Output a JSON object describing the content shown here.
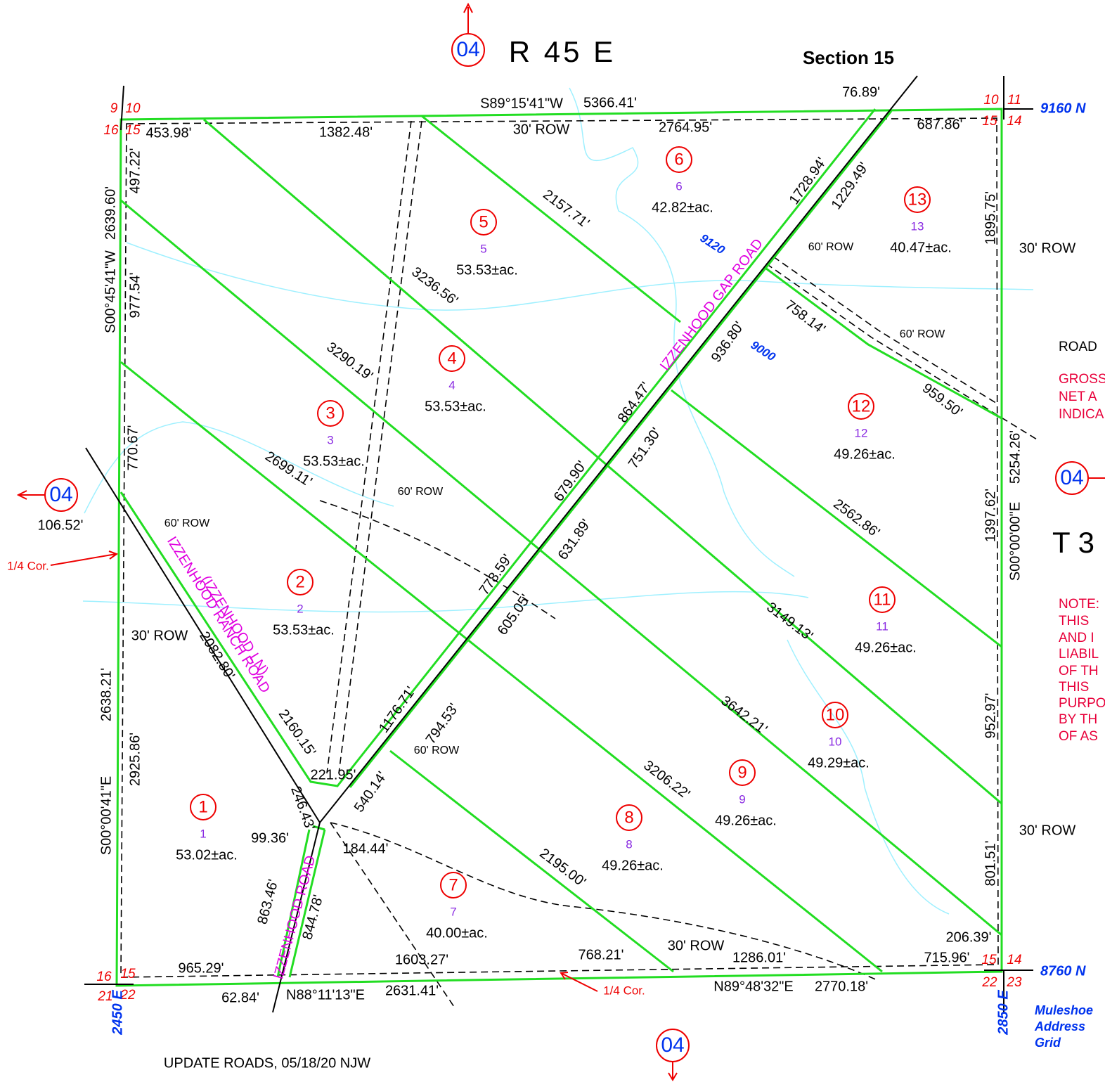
{
  "header": {
    "range": "R 45 E",
    "section": "Section 15",
    "township": "T 3"
  },
  "sheet_refs": [
    "04",
    "04",
    "04",
    "04"
  ],
  "section_corners": [
    "9",
    "10",
    "16",
    "15",
    "10",
    "11",
    "15",
    "14",
    "16",
    "15",
    "21",
    "22",
    "15",
    "14",
    "22",
    "23"
  ],
  "grid": [
    "9160 N",
    "8760 N",
    "2450 E",
    "2850 E",
    "9120",
    "9000"
  ],
  "grid_legend": [
    "Muleshoe",
    "Address",
    "Grid"
  ],
  "corner_notes": [
    "1/4 Cor.",
    "1/4 Cor."
  ],
  "roads": [
    "IZZENHOOD GAP ROAD",
    "(IZZENHOOD LN)",
    "IZZENHOOD RANCH ROAD",
    "IZZENHOOD ROAD"
  ],
  "dimensions": [
    "S89°15'41\"W",
    "5366.41'",
    "453.98'",
    "1382.48'",
    "30' ROW",
    "2764.95'",
    "76.89'",
    "687.86'",
    "497.22'",
    "2639.60'",
    "S00°45'41\"W",
    "977.54'",
    "770.67'",
    "106.52'",
    "2157.71'",
    "3236.56'",
    "3290.19'",
    "2699.11'",
    "60' ROW",
    "60' ROW",
    "1728.94'",
    "1229.49'",
    "60' ROW",
    "758.14'",
    "60' ROW",
    "936.80'",
    "864.47'",
    "959.50'",
    "751.30'",
    "679.90'",
    "631.89'",
    "2562.86'",
    "778.59'",
    "605.05'",
    "3149.13'",
    "30' ROW",
    "2082.80'",
    "1176.71'",
    "794.53'",
    "3642.21'",
    "2160.15'",
    "60' ROW",
    "540.14'",
    "221.95'",
    "3206.22'",
    "246.43'",
    "99.36'",
    "184.44'",
    "2195.00'",
    "863.46'",
    "844.78'",
    "965.29'",
    "1603.27'",
    "768.21'",
    "30' ROW",
    "1286.01'",
    "715.96'",
    "206.39'",
    "62.84'",
    "N88°11'13\"E",
    "2631.41'",
    "N89°48'32\"E",
    "2770.18'",
    "1895.75'",
    "30' ROW",
    "5254.26'",
    "1397.62'",
    "S00°00'00\"E",
    "952.97'",
    "30' ROW",
    "801.51'",
    "2638.21'",
    "2925.86'",
    "S00°00'41\"E"
  ],
  "parcels": [
    {
      "number": "1",
      "id": "1",
      "area": "53.02±ac."
    },
    {
      "number": "2",
      "id": "2",
      "area": "53.53±ac."
    },
    {
      "number": "3",
      "id": "3",
      "area": "53.53±ac."
    },
    {
      "number": "4",
      "id": "4",
      "area": "53.53±ac."
    },
    {
      "number": "5",
      "id": "5",
      "area": "53.53±ac."
    },
    {
      "number": "6",
      "id": "6",
      "area": "42.82±ac."
    },
    {
      "number": "7",
      "id": "7",
      "area": "40.00±ac."
    },
    {
      "number": "8",
      "id": "8",
      "area": "49.26±ac."
    },
    {
      "number": "9",
      "id": "9",
      "area": "49.26±ac."
    },
    {
      "number": "10",
      "id": "10",
      "area": "49.29±ac."
    },
    {
      "number": "11",
      "id": "11",
      "area": "49.26±ac."
    },
    {
      "number": "12",
      "id": "12",
      "area": "49.26±ac."
    },
    {
      "number": "13",
      "id": "13",
      "area": "40.47±ac."
    }
  ],
  "notes": [
    "ROAD",
    "GROSS",
    "NET  A",
    "INDICA",
    "NOTE:",
    "THIS",
    "AND  I",
    "LIABIL",
    "OF  TH",
    "THIS",
    "PURPO",
    "BY  TH",
    "OF  AS"
  ],
  "footer": "UPDATE ROADS, 05/18/20 NJW"
}
